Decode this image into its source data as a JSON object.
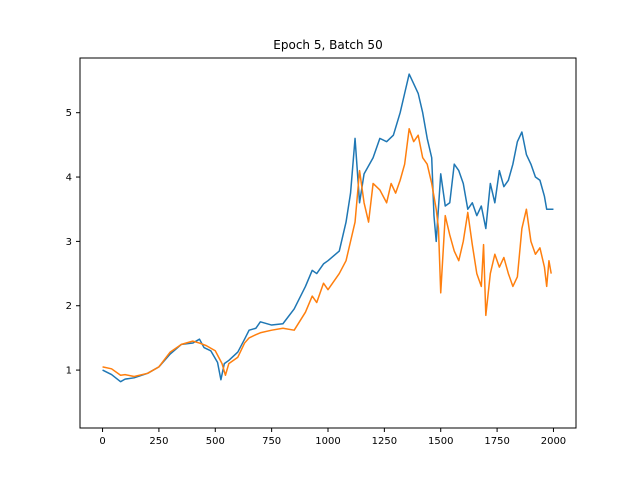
{
  "chart_data": {
    "type": "line",
    "title": "Epoch 5, Batch 50",
    "xlabel": "",
    "ylabel": "",
    "xlim": [
      -100,
      2100
    ],
    "ylim": [
      0.1,
      5.85
    ],
    "grid": false,
    "legend": "none",
    "xticks": [
      0,
      250,
      500,
      750,
      1000,
      1250,
      1500,
      1750,
      2000
    ],
    "xtick_labels": [
      "0",
      "250",
      "500",
      "750",
      "1000",
      "1250",
      "1500",
      "1750",
      "2000"
    ],
    "yticks": [
      1,
      2,
      3,
      4,
      5
    ],
    "ytick_labels": [
      "1",
      "2",
      "3",
      "4",
      "5"
    ],
    "series": [
      {
        "color": "#1f77b4",
        "x": [
          0,
          40,
          80,
          100,
          140,
          200,
          250,
          300,
          350,
          400,
          430,
          450,
          480,
          510,
          525,
          540,
          560,
          600,
          630,
          650,
          680,
          700,
          750,
          800,
          850,
          900,
          930,
          950,
          980,
          1000,
          1050,
          1080,
          1100,
          1120,
          1140,
          1160,
          1200,
          1230,
          1260,
          1290,
          1320,
          1340,
          1360,
          1380,
          1400,
          1420,
          1440,
          1460,
          1470,
          1480,
          1500,
          1520,
          1540,
          1560,
          1580,
          1600,
          1620,
          1640,
          1660,
          1680,
          1700,
          1720,
          1740,
          1760,
          1780,
          1800,
          1820,
          1840,
          1860,
          1880,
          1900,
          1920,
          1940,
          1960,
          1970,
          1980,
          2000
        ],
        "y": [
          1.0,
          0.93,
          0.82,
          0.86,
          0.88,
          0.95,
          1.05,
          1.25,
          1.4,
          1.42,
          1.48,
          1.35,
          1.3,
          1.12,
          0.85,
          1.1,
          1.15,
          1.28,
          1.48,
          1.62,
          1.65,
          1.75,
          1.7,
          1.72,
          1.95,
          2.3,
          2.55,
          2.5,
          2.65,
          2.7,
          2.85,
          3.3,
          3.75,
          4.6,
          3.6,
          4.05,
          4.3,
          4.6,
          4.55,
          4.65,
          5.0,
          5.3,
          5.6,
          5.45,
          5.3,
          5.0,
          4.6,
          4.3,
          3.4,
          3.0,
          4.05,
          3.55,
          3.6,
          4.2,
          4.1,
          3.9,
          3.5,
          3.6,
          3.4,
          3.55,
          3.2,
          3.9,
          3.6,
          4.1,
          3.85,
          3.95,
          4.2,
          4.55,
          4.7,
          4.35,
          4.2,
          4.0,
          3.95,
          3.7,
          3.5,
          3.5,
          3.5
        ]
      },
      {
        "color": "#ff7f0e",
        "x": [
          0,
          40,
          80,
          100,
          140,
          200,
          250,
          300,
          350,
          400,
          430,
          460,
          500,
          530,
          545,
          560,
          600,
          630,
          650,
          680,
          700,
          750,
          800,
          850,
          900,
          930,
          950,
          980,
          1000,
          1050,
          1080,
          1100,
          1120,
          1140,
          1160,
          1180,
          1200,
          1230,
          1260,
          1280,
          1300,
          1320,
          1340,
          1360,
          1380,
          1400,
          1420,
          1440,
          1460,
          1480,
          1490,
          1500,
          1520,
          1540,
          1560,
          1580,
          1600,
          1620,
          1640,
          1660,
          1680,
          1690,
          1700,
          1720,
          1740,
          1760,
          1780,
          1800,
          1820,
          1840,
          1860,
          1880,
          1900,
          1920,
          1940,
          1960,
          1970,
          1980,
          1990
        ],
        "y": [
          1.05,
          1.02,
          0.92,
          0.93,
          0.9,
          0.95,
          1.05,
          1.28,
          1.4,
          1.45,
          1.42,
          1.38,
          1.3,
          1.1,
          0.92,
          1.1,
          1.2,
          1.42,
          1.5,
          1.55,
          1.58,
          1.62,
          1.65,
          1.62,
          1.9,
          2.15,
          2.05,
          2.35,
          2.25,
          2.5,
          2.7,
          3.0,
          3.3,
          4.1,
          3.6,
          3.3,
          3.9,
          3.8,
          3.6,
          3.9,
          3.75,
          3.95,
          4.2,
          4.75,
          4.55,
          4.65,
          4.3,
          4.2,
          3.9,
          3.5,
          3.2,
          2.2,
          3.4,
          3.1,
          2.85,
          2.7,
          3.0,
          3.45,
          2.95,
          2.5,
          2.3,
          2.95,
          1.85,
          2.5,
          2.8,
          2.6,
          2.75,
          2.5,
          2.3,
          2.45,
          3.2,
          3.5,
          3.0,
          2.8,
          2.9,
          2.6,
          2.3,
          2.7,
          2.5
        ]
      }
    ]
  }
}
